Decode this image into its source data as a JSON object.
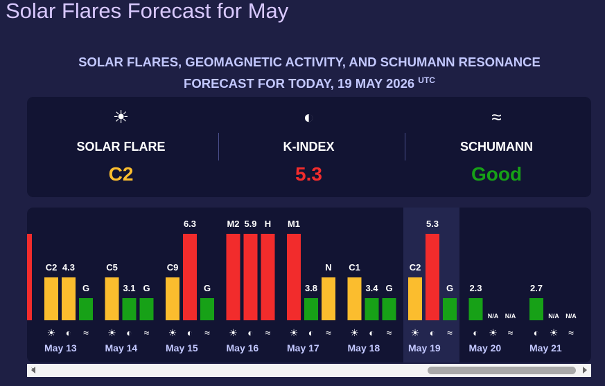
{
  "header": {
    "title": "Solar Flares Forecast for May"
  },
  "forecast": {
    "heading": "SOLAR FLARES, GEOMAGNETIC ACTIVITY, AND SCHUMANN RESONANCE FORECAST FOR TODAY, 19 MAY 2026",
    "tz": "UTC"
  },
  "summary": [
    {
      "kind": "flare",
      "label": "SOLAR FLARE",
      "value": "C2"
    },
    {
      "kind": "k",
      "label": "K-INDEX",
      "value": 5.3
    },
    {
      "kind": "schumann",
      "label": "SCHUMANN",
      "value": "Good"
    }
  ],
  "today": "May 19",
  "days": [
    {
      "date": "May 13",
      "bars": [
        {
          "kind": "flare",
          "label": "C2"
        },
        {
          "kind": "k",
          "label": 4.3
        },
        {
          "kind": "schumann",
          "label": "G"
        }
      ]
    },
    {
      "date": "May 14",
      "bars": [
        {
          "kind": "flare",
          "label": "C5"
        },
        {
          "kind": "k",
          "label": 3.1
        },
        {
          "kind": "schumann",
          "label": "G"
        }
      ]
    },
    {
      "date": "May 15",
      "bars": [
        {
          "kind": "flare",
          "label": "C9"
        },
        {
          "kind": "k",
          "label": 6.3
        },
        {
          "kind": "schumann",
          "label": "G"
        }
      ]
    },
    {
      "date": "May 16",
      "bars": [
        {
          "kind": "flare",
          "label": "M2"
        },
        {
          "kind": "k",
          "label": 5.9
        },
        {
          "kind": "schumann",
          "label": "H"
        }
      ]
    },
    {
      "date": "May 17",
      "bars": [
        {
          "kind": "flare",
          "label": "M1"
        },
        {
          "kind": "k",
          "label": 3.8
        },
        {
          "kind": "schumann",
          "label": "N"
        }
      ]
    },
    {
      "date": "May 18",
      "bars": [
        {
          "kind": "flare",
          "label": "C1"
        },
        {
          "kind": "k",
          "label": 3.4
        },
        {
          "kind": "schumann",
          "label": "G"
        }
      ]
    },
    {
      "date": "May 19",
      "bars": [
        {
          "kind": "flare",
          "label": "C2"
        },
        {
          "kind": "k",
          "label": 5.3
        },
        {
          "kind": "schumann",
          "label": "G"
        }
      ]
    },
    {
      "date": "May 20",
      "bars": [
        {
          "kind": "k",
          "label": 2.3
        },
        {
          "kind": "flare",
          "label": "N/A"
        },
        {
          "kind": "schumann",
          "label": "N/A"
        }
      ]
    },
    {
      "date": "May 21",
      "bars": [
        {
          "kind": "k",
          "label": 2.7
        },
        {
          "kind": "flare",
          "label": "N/A"
        },
        {
          "kind": "schumann",
          "label": "N/A"
        }
      ]
    }
  ]
}
